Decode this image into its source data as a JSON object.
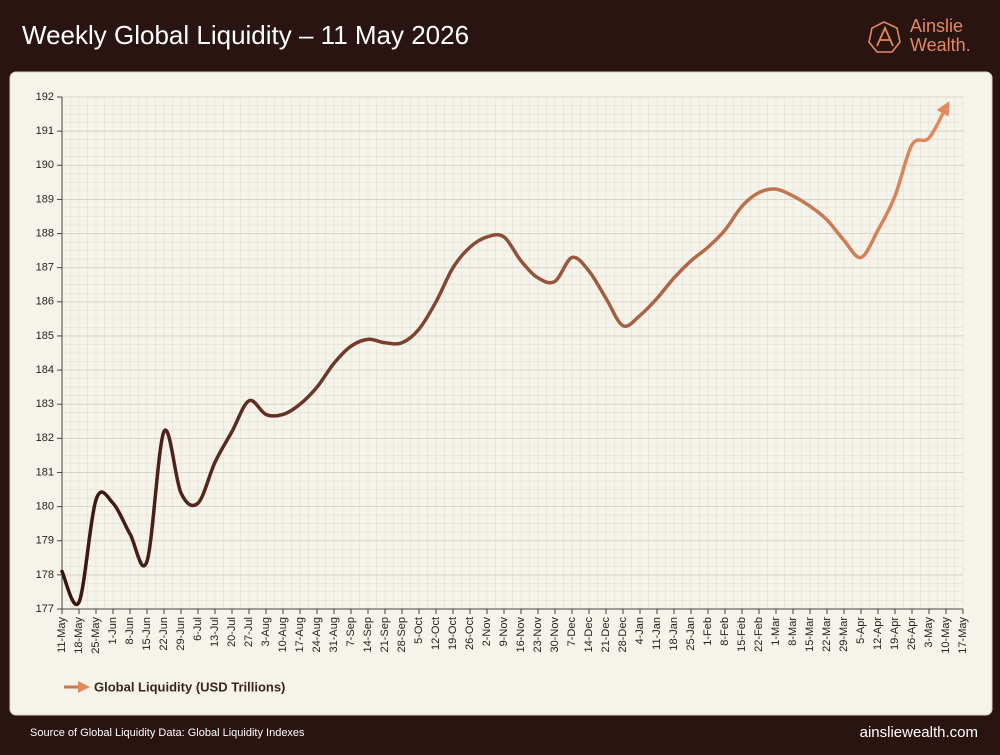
{
  "chart_data": {
    "type": "line",
    "title": "Weekly Global Liquidity – 11 May 2026",
    "brand": [
      "Ainslie",
      "Wealth."
    ],
    "source": "Source of Global Liquidity Data: Global Liquidity Indexes",
    "website": "ainsliewealth.com",
    "categories": [
      "11-May",
      "18-May",
      "25-May",
      "1-Jun",
      "8-Jun",
      "15-Jun",
      "22-Jun",
      "29-Jun",
      "6-Jul",
      "13-Jul",
      "20-Jul",
      "27-Jul",
      "3-Aug",
      "10-Aug",
      "17-Aug",
      "24-Aug",
      "31-Aug",
      "7-Sep",
      "14-Sep",
      "21-Sep",
      "28-Sep",
      "5-Oct",
      "12-Oct",
      "19-Oct",
      "26-Oct",
      "2-Nov",
      "9-Nov",
      "16-Nov",
      "23-Nov",
      "30-Nov",
      "7-Dec",
      "14-Dec",
      "21-Dec",
      "28-Dec",
      "4-Jan",
      "11-Jan",
      "18-Jan",
      "25-Jan",
      "1-Feb",
      "8-Feb",
      "15-Feb",
      "22-Feb",
      "1-Mar",
      "8-Mar",
      "15-Mar",
      "22-Mar",
      "29-Mar",
      "5-Apr",
      "12-Apr",
      "19-Apr",
      "26-Apr",
      "3-May",
      "10-May",
      "17-May"
    ],
    "series": [
      {
        "name": "Global Liquidity (USD Trillions)",
        "color": [
          "#3a1410",
          "#e28a5e"
        ],
        "values": [
          178.1,
          177.2,
          180.2,
          180.1,
          179.2,
          178.4,
          182.2,
          180.4,
          180.1,
          181.3,
          182.2,
          183.1,
          182.7,
          182.7,
          183.0,
          183.5,
          184.2,
          184.7,
          184.9,
          184.8,
          184.8,
          185.2,
          186.0,
          187.0,
          187.6,
          187.9,
          187.9,
          187.2,
          186.7,
          186.6,
          187.3,
          186.9,
          186.1,
          185.3,
          185.6,
          186.1,
          186.7,
          187.2,
          187.6,
          188.1,
          188.8,
          189.2,
          189.3,
          189.1,
          188.8,
          188.4,
          187.8,
          187.3,
          188.1,
          189.1,
          190.6,
          190.8,
          191.7,
          null
        ]
      }
    ],
    "ylim": [
      177,
      192
    ],
    "yticks": [
      177,
      178,
      179,
      180,
      181,
      182,
      183,
      184,
      185,
      186,
      187,
      188,
      189,
      190,
      191,
      192
    ],
    "grid": true,
    "legend": "bottom-left"
  }
}
